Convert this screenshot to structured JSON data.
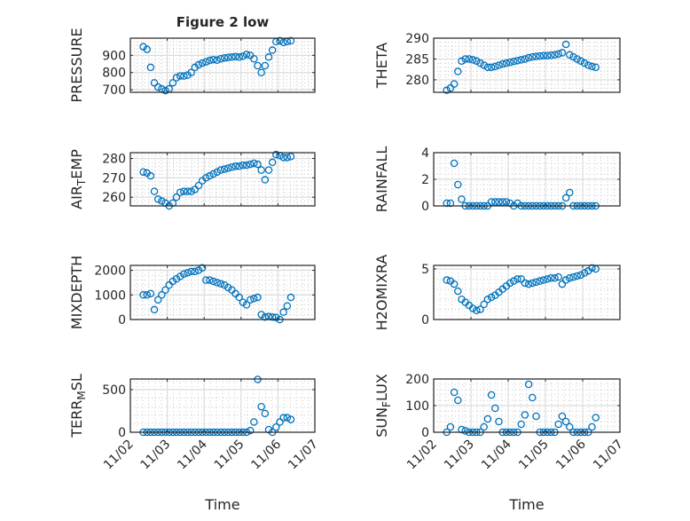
{
  "chart_data": {
    "type": "scatter",
    "title": "Figure 2 low",
    "xlabel": "Time",
    "x_unit": "days since 11/02",
    "xlim": [
      0,
      5
    ],
    "xtick_labels": [
      "11/02",
      "11/03",
      "11/04",
      "11/05",
      "11/06",
      "11/07"
    ],
    "grid": "major+minor",
    "marker": "open-circle",
    "color": "#0072BD",
    "x": [
      0.35,
      0.45,
      0.55,
      0.65,
      0.75,
      0.85,
      0.95,
      1.05,
      1.15,
      1.25,
      1.35,
      1.45,
      1.55,
      1.65,
      1.75,
      1.85,
      1.95,
      2.05,
      2.15,
      2.25,
      2.35,
      2.45,
      2.55,
      2.65,
      2.75,
      2.85,
      2.95,
      3.05,
      3.15,
      3.25,
      3.35,
      3.45,
      3.55,
      3.65,
      3.75,
      3.85,
      3.95,
      4.05,
      4.15,
      4.25,
      4.35
    ],
    "panels": [
      {
        "ylabel": "PRESSURE",
        "ylim": [
          685,
          1000
        ],
        "yticks": [
          700,
          800,
          900
        ],
        "values": [
          950,
          935,
          830,
          740,
          715,
          705,
          695,
          705,
          740,
          770,
          780,
          780,
          785,
          800,
          830,
          845,
          855,
          862,
          870,
          875,
          872,
          880,
          885,
          888,
          890,
          892,
          890,
          895,
          905,
          900,
          880,
          840,
          800,
          840,
          890,
          930,
          980,
          985,
          975,
          980,
          985
        ]
      },
      {
        "ylabel": "THETA",
        "ylim": [
          277,
          290
        ],
        "yticks": [
          280,
          285,
          290
        ],
        "values": [
          277.5,
          278,
          279,
          282,
          284.5,
          285,
          285,
          284.8,
          284.5,
          284,
          283.5,
          283,
          283,
          283.2,
          283.5,
          283.8,
          284,
          284.2,
          284.4,
          284.6,
          284.8,
          285,
          285.3,
          285.5,
          285.6,
          285.7,
          285.8,
          285.8,
          285.9,
          286,
          286.2,
          286.5,
          288.5,
          286,
          285.5,
          285,
          284.5,
          284,
          283.5,
          283.2,
          283
        ]
      },
      {
        "ylabel": "AIR_TEMP",
        "ylim": [
          255.5,
          283
        ],
        "yticks": [
          260,
          270,
          280
        ],
        "values": [
          273,
          272.5,
          271,
          263,
          259,
          258,
          257,
          255.5,
          257,
          260,
          262.5,
          263,
          263,
          263,
          264,
          266,
          268.5,
          270,
          271,
          272,
          273,
          274,
          274.5,
          275,
          275.5,
          276,
          276,
          276.5,
          276.5,
          277,
          277.5,
          277,
          274,
          269,
          274,
          278,
          282,
          281.5,
          280.5,
          280.5,
          281
        ]
      },
      {
        "ylabel": "RAINFALL",
        "ylim": [
          0,
          4
        ],
        "yticks": [
          0,
          2,
          4
        ],
        "values": [
          0.2,
          0.2,
          3.2,
          1.6,
          0.5,
          0,
          0,
          0,
          0,
          0,
          0,
          0,
          0.3,
          0.3,
          0.3,
          0.3,
          0.3,
          0.2,
          0,
          0.2,
          0,
          0,
          0,
          0,
          0,
          0,
          0,
          0,
          0,
          0,
          0,
          0,
          0.6,
          1.0,
          0,
          0,
          0,
          0,
          0,
          0,
          0
        ]
      },
      {
        "ylabel": "MIXDEPTH",
        "ylim": [
          0,
          2200
        ],
        "yticks": [
          0,
          1000,
          2000
        ],
        "values": [
          1000,
          1000,
          1050,
          400,
          800,
          1000,
          1200,
          1400,
          1550,
          1650,
          1750,
          1850,
          1900,
          1950,
          1950,
          2000,
          2100,
          1600,
          1600,
          1550,
          1500,
          1450,
          1400,
          1300,
          1200,
          1050,
          900,
          700,
          600,
          800,
          850,
          900,
          200,
          100,
          120,
          100,
          80,
          0,
          300,
          550,
          900
        ]
      },
      {
        "ylabel": "H2OMIXRA",
        "ylim": [
          0,
          5.35
        ],
        "yticks": [
          0,
          5
        ],
        "values": [
          3.9,
          3.8,
          3.5,
          2.8,
          2.0,
          1.7,
          1.4,
          1.1,
          0.9,
          1.0,
          1.5,
          2.0,
          2.2,
          2.4,
          2.7,
          3.0,
          3.3,
          3.6,
          3.8,
          4.0,
          4.0,
          3.6,
          3.5,
          3.6,
          3.7,
          3.8,
          3.9,
          4.0,
          4.1,
          4.1,
          4.2,
          3.5,
          3.9,
          4.1,
          4.2,
          4.3,
          4.4,
          4.6,
          4.8,
          5.1,
          5.0
        ]
      },
      {
        "ylabel": "TERR_MSL",
        "ylim": [
          0,
          625
        ],
        "yticks": [
          0,
          500
        ],
        "values": [
          0,
          0,
          0,
          0,
          0,
          0,
          0,
          0,
          0,
          0,
          0,
          0,
          0,
          0,
          0,
          0,
          0,
          0,
          0,
          0,
          0,
          0,
          0,
          0,
          0,
          0,
          0,
          0,
          0,
          20,
          120,
          620,
          300,
          220,
          30,
          0,
          60,
          120,
          170,
          170,
          150
        ]
      },
      {
        "ylabel": "SUN_FLUX",
        "ylim": [
          0,
          200
        ],
        "yticks": [
          0,
          100,
          200
        ],
        "values": [
          0,
          20,
          150,
          120,
          10,
          5,
          0,
          0,
          0,
          0,
          20,
          50,
          140,
          90,
          40,
          0,
          0,
          0,
          0,
          0,
          30,
          65,
          180,
          130,
          60,
          0,
          0,
          0,
          0,
          0,
          30,
          60,
          40,
          20,
          0,
          0,
          0,
          0,
          0,
          20,
          55
        ]
      }
    ]
  }
}
